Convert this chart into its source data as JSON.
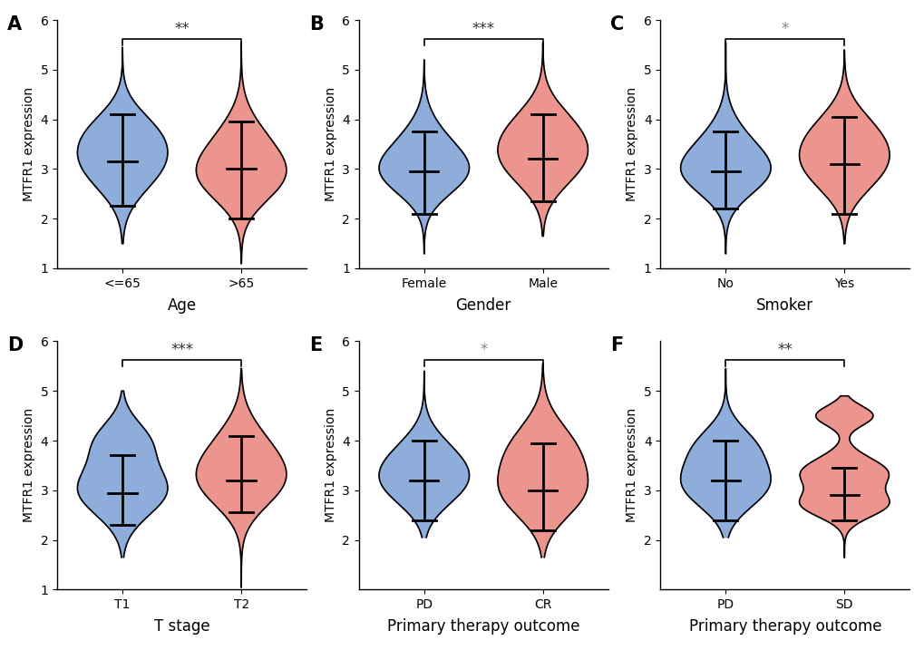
{
  "panels": [
    {
      "label": "A",
      "xlabel": "Age",
      "xtick_labels": [
        "<=65",
        ">65"
      ],
      "significance": "**",
      "sig_color": "#333333",
      "ylim": [
        1,
        6
      ],
      "yticks": [
        1,
        2,
        3,
        4,
        5,
        6
      ],
      "groups": [
        {
          "color": "#7b9fd4",
          "median": 3.15,
          "q1": 2.25,
          "q3": 4.1,
          "vmin": 1.5,
          "vmax": 5.45,
          "kde_centers": [
            3.1,
            3.8
          ],
          "kde_weights": [
            0.7,
            0.3
          ],
          "kde_bw": [
            0.55,
            0.45
          ]
        },
        {
          "color": "#e8837a",
          "median": 3.0,
          "q1": 2.0,
          "q3": 3.95,
          "vmin": 1.1,
          "vmax": 5.55,
          "kde_centers": [
            2.8,
            3.5
          ],
          "kde_weights": [
            0.6,
            0.4
          ],
          "kde_bw": [
            0.5,
            0.55
          ]
        }
      ]
    },
    {
      "label": "B",
      "xlabel": "Gender",
      "xtick_labels": [
        "Female",
        "Male"
      ],
      "significance": "***",
      "sig_color": "#333333",
      "ylim": [
        1,
        6
      ],
      "yticks": [
        1,
        2,
        3,
        4,
        5,
        6
      ],
      "groups": [
        {
          "color": "#7b9fd4",
          "median": 2.95,
          "q1": 2.1,
          "q3": 3.75,
          "vmin": 1.3,
          "vmax": 5.2,
          "kde_centers": [
            2.9,
            3.5
          ],
          "kde_weights": [
            0.65,
            0.35
          ],
          "kde_bw": [
            0.45,
            0.5
          ]
        },
        {
          "color": "#e8837a",
          "median": 3.2,
          "q1": 2.35,
          "q3": 4.1,
          "vmin": 1.65,
          "vmax": 5.55,
          "kde_centers": [
            3.1,
            3.8
          ],
          "kde_weights": [
            0.55,
            0.45
          ],
          "kde_bw": [
            0.5,
            0.5
          ]
        }
      ]
    },
    {
      "label": "C",
      "xlabel": "Smoker",
      "xtick_labels": [
        "No",
        "Yes"
      ],
      "significance": "*",
      "sig_color": "#888888",
      "ylim": [
        1,
        6
      ],
      "yticks": [
        1,
        2,
        3,
        4,
        5,
        6
      ],
      "groups": [
        {
          "color": "#7b9fd4",
          "median": 2.95,
          "q1": 2.2,
          "q3": 3.75,
          "vmin": 1.3,
          "vmax": 5.55,
          "kde_centers": [
            2.9,
            3.5
          ],
          "kde_weights": [
            0.65,
            0.35
          ],
          "kde_bw": [
            0.45,
            0.5
          ]
        },
        {
          "color": "#e8837a",
          "median": 3.1,
          "q1": 2.1,
          "q3": 4.05,
          "vmin": 1.5,
          "vmax": 5.4,
          "kde_centers": [
            3.0,
            3.7
          ],
          "kde_weights": [
            0.55,
            0.45
          ],
          "kde_bw": [
            0.5,
            0.5
          ]
        }
      ]
    },
    {
      "label": "D",
      "xlabel": "T stage",
      "xtick_labels": [
        "T1",
        "T2"
      ],
      "significance": "***",
      "sig_color": "#333333",
      "ylim": [
        1,
        6
      ],
      "yticks": [
        1,
        2,
        3,
        4,
        5,
        6
      ],
      "groups": [
        {
          "color": "#7b9fd4",
          "median": 2.95,
          "q1": 2.3,
          "q3": 3.7,
          "vmin": 1.65,
          "vmax": 5.0,
          "kde_centers": [
            3.0,
            4.0
          ],
          "kde_weights": [
            0.7,
            0.3
          ],
          "kde_bw": [
            0.5,
            0.4
          ]
        },
        {
          "color": "#e8837a",
          "median": 3.2,
          "q1": 2.55,
          "q3": 4.1,
          "vmin": 1.05,
          "vmax": 5.45,
          "kde_centers": [
            3.1,
            3.8
          ],
          "kde_weights": [
            0.55,
            0.45
          ],
          "kde_bw": [
            0.5,
            0.55
          ]
        }
      ]
    },
    {
      "label": "E",
      "xlabel": "Primary therapy outcome",
      "xtick_labels": [
        "PD",
        "CR"
      ],
      "significance": "*",
      "sig_color": "#888888",
      "ylim": [
        1,
        6
      ],
      "yticks": [
        2,
        3,
        4,
        5,
        6
      ],
      "groups": [
        {
          "color": "#7b9fd4",
          "median": 3.2,
          "q1": 2.4,
          "q3": 4.0,
          "vmin": 2.05,
          "vmax": 5.4,
          "kde_centers": [
            3.1,
            3.7
          ],
          "kde_weights": [
            0.6,
            0.4
          ],
          "kde_bw": [
            0.45,
            0.45
          ]
        },
        {
          "color": "#e8837a",
          "median": 3.0,
          "q1": 2.2,
          "q3": 3.95,
          "vmin": 1.65,
          "vmax": 5.55,
          "kde_centers": [
            2.9,
            3.8
          ],
          "kde_weights": [
            0.5,
            0.5
          ],
          "kde_bw": [
            0.5,
            0.55
          ]
        }
      ]
    },
    {
      "label": "F",
      "xlabel": "Primary therapy outcome",
      "xtick_labels": [
        "PD",
        "SD"
      ],
      "significance": "**",
      "sig_color": "#333333",
      "ylim": [
        1,
        6
      ],
      "yticks": [
        2,
        3,
        4,
        5
      ],
      "groups": [
        {
          "color": "#7b9fd4",
          "median": 3.2,
          "q1": 2.4,
          "q3": 4.0,
          "vmin": 2.05,
          "vmax": 5.45,
          "kde_centers": [
            3.1,
            3.9
          ],
          "kde_weights": [
            0.65,
            0.35
          ],
          "kde_bw": [
            0.45,
            0.4
          ]
        },
        {
          "color": "#e8837a",
          "median": 2.9,
          "q1": 2.4,
          "q3": 3.45,
          "vmin": 1.65,
          "vmax": 4.9,
          "kde_centers": [
            2.7,
            3.35,
            4.5
          ],
          "kde_weights": [
            0.35,
            0.45,
            0.2
          ],
          "kde_bw": [
            0.25,
            0.3,
            0.2
          ]
        }
      ]
    }
  ],
  "ylabel": "MTFR1 expression",
  "background_color": "#ffffff",
  "tick_fontsize": 10,
  "xlabel_fontsize": 12,
  "ylabel_fontsize": 10,
  "panel_label_fontsize": 15
}
